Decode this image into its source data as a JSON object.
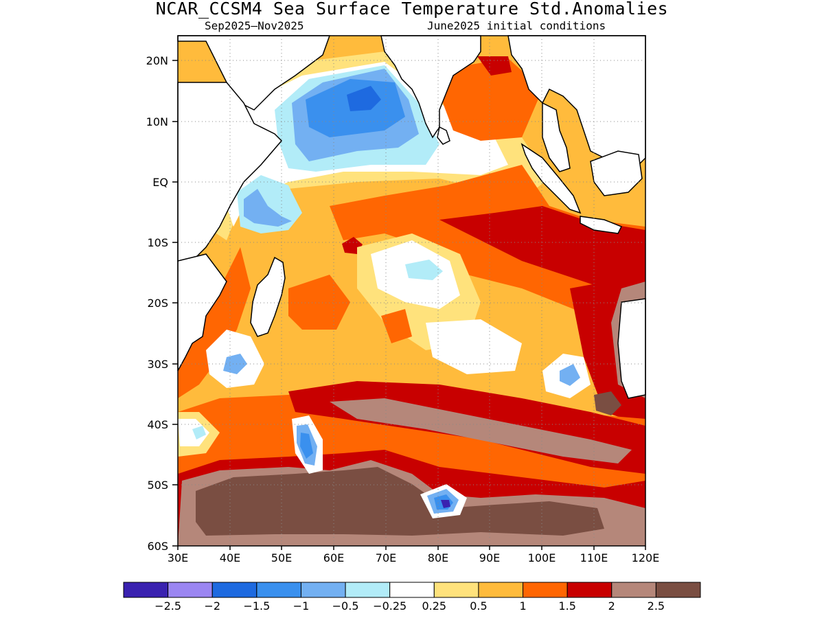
{
  "title": "NCAR_CCSM4 Sea Surface Temperature Std.Anomalies",
  "subtitle_left": "Sep2025–Nov2025",
  "subtitle_right": "June2025 initial conditions",
  "lat_ticks": [
    "20N",
    "10N",
    "EQ",
    "10S",
    "20S",
    "30S",
    "40S",
    "50S",
    "60S"
  ],
  "lon_ticks": [
    "30E",
    "40E",
    "50E",
    "60E",
    "70E",
    "80E",
    "90E",
    "100E",
    "110E",
    "120E"
  ],
  "colorbar": {
    "colors": [
      "#3a22b0",
      "#9b86f2",
      "#1e6ae0",
      "#3a90ee",
      "#73b0f2",
      "#b2ecf8",
      "#ffffff",
      "#ffe27c",
      "#ffbb3c",
      "#ff6602",
      "#c80000",
      "#b5877a",
      "#7a4e42"
    ],
    "labels": [
      "−2.5",
      "−2",
      "−1.5",
      "−1",
      "−0.5",
      "−0.25",
      "0.25",
      "0.5",
      "1",
      "1.5",
      "2",
      "2.5"
    ]
  },
  "colors": {
    "land": "#ffffff",
    "coast": "#000000",
    "grid": "#888888"
  },
  "chart_data": {
    "type": "heatmap",
    "title": "NCAR_CCSM4 Sea Surface Temperature Std.Anomalies",
    "subtitle": [
      "Sep2025–Nov2025",
      "June2025 initial conditions"
    ],
    "x_range_deg_east": [
      30,
      120
    ],
    "y_range_deg_north": [
      -60,
      24
    ],
    "levels": [
      -2.5,
      -2,
      -1.5,
      -1,
      -0.5,
      -0.25,
      0.25,
      0.5,
      1,
      1.5,
      2,
      2.5
    ],
    "regions": [
      {
        "lon": 65,
        "lat": 13,
        "value": -1.5
      },
      {
        "lon": 74,
        "lat": 10,
        "value": -0.5
      },
      {
        "lon": 42,
        "lat": -3,
        "value": -0.5
      },
      {
        "lon": 79,
        "lat": -14,
        "value": 0
      },
      {
        "lon": 84,
        "lat": -13,
        "value": -0.25
      },
      {
        "lon": 88,
        "lat": -29,
        "value": 0
      },
      {
        "lon": 41,
        "lat": -30,
        "value": -0.5
      },
      {
        "lon": 55,
        "lat": -45,
        "value": -1.5
      },
      {
        "lon": 81,
        "lat": -52.5,
        "value": -2.5
      },
      {
        "lon": 105,
        "lat": -32,
        "value": -1
      },
      {
        "lon": 64,
        "lat": -21,
        "value": 0.75
      },
      {
        "lon": 97,
        "lat": -8,
        "value": 1.75
      },
      {
        "lon": 88,
        "lat": 20,
        "value": 2
      },
      {
        "lon": 90,
        "lat": -38,
        "value": 2
      },
      {
        "lon": 80,
        "lat": -40,
        "value": 2.25
      },
      {
        "lon": 75,
        "lat": -55,
        "value": 2.75
      },
      {
        "lon": 112,
        "lat": -26,
        "value": 2.25
      }
    ],
    "grid": true
  }
}
